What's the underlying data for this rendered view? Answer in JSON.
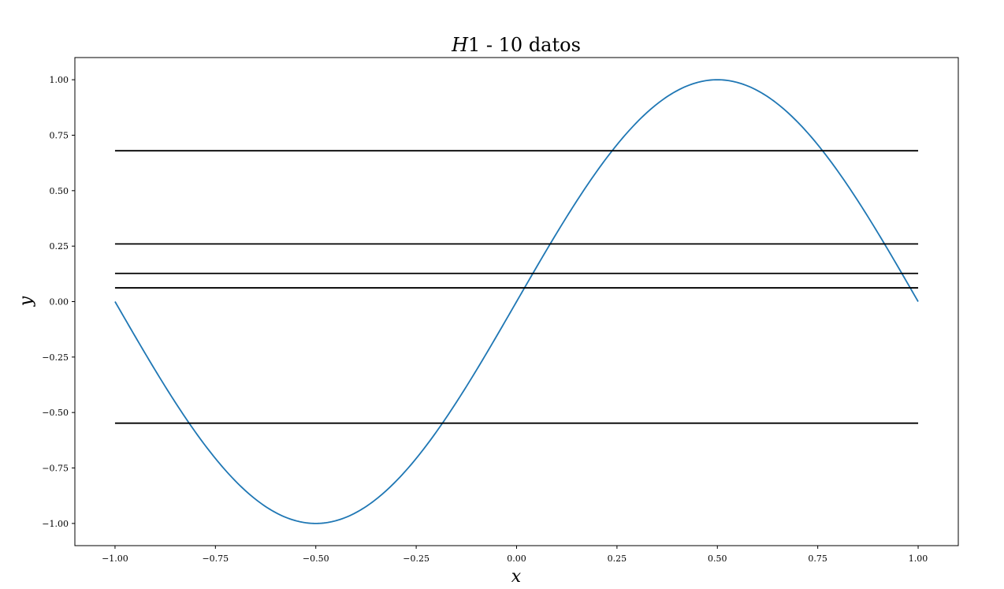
{
  "chart_data": {
    "type": "line",
    "title": {
      "symbol": "H",
      "rest": "1 - 10 datos"
    },
    "xlabel": "x",
    "ylabel": "y",
    "xlim": [
      -1.1,
      1.1
    ],
    "ylim": [
      -1.1,
      1.1
    ],
    "grid": false,
    "legend": "none",
    "xticks": [
      {
        "value": -1.0,
        "label": "−1.00"
      },
      {
        "value": -0.75,
        "label": "−0.75"
      },
      {
        "value": -0.5,
        "label": "−0.50"
      },
      {
        "value": -0.25,
        "label": "−0.25"
      },
      {
        "value": 0.0,
        "label": "0.00"
      },
      {
        "value": 0.25,
        "label": "0.25"
      },
      {
        "value": 0.5,
        "label": "0.50"
      },
      {
        "value": 0.75,
        "label": "0.75"
      },
      {
        "value": 1.0,
        "label": "1.00"
      }
    ],
    "yticks": [
      {
        "value": -1.0,
        "label": "−1.00"
      },
      {
        "value": -0.75,
        "label": "−0.75"
      },
      {
        "value": -0.5,
        "label": "−0.50"
      },
      {
        "value": -0.25,
        "label": "−0.25"
      },
      {
        "value": 0.0,
        "label": "0.00"
      },
      {
        "value": 0.25,
        "label": "0.25"
      },
      {
        "value": 0.5,
        "label": "0.50"
      },
      {
        "value": 0.75,
        "label": "0.75"
      },
      {
        "value": 1.0,
        "label": "1.00"
      }
    ],
    "series": [
      {
        "kind": "function",
        "expression": "sin(pi*x)",
        "x_range": [
          -1.0,
          1.0
        ],
        "color": "#1f77b4"
      },
      {
        "kind": "hline",
        "y": 0.68,
        "x_range": [
          -1.0,
          1.0
        ],
        "color": "#000000"
      },
      {
        "kind": "hline",
        "y": 0.26,
        "x_range": [
          -1.0,
          1.0
        ],
        "color": "#000000"
      },
      {
        "kind": "hline",
        "y": 0.127,
        "x_range": [
          -1.0,
          1.0
        ],
        "color": "#000000"
      },
      {
        "kind": "hline",
        "y": 0.062,
        "x_range": [
          -1.0,
          1.0
        ],
        "color": "#000000"
      },
      {
        "kind": "hline",
        "y": -0.548,
        "x_range": [
          -1.0,
          1.0
        ],
        "color": "#000000"
      }
    ]
  }
}
